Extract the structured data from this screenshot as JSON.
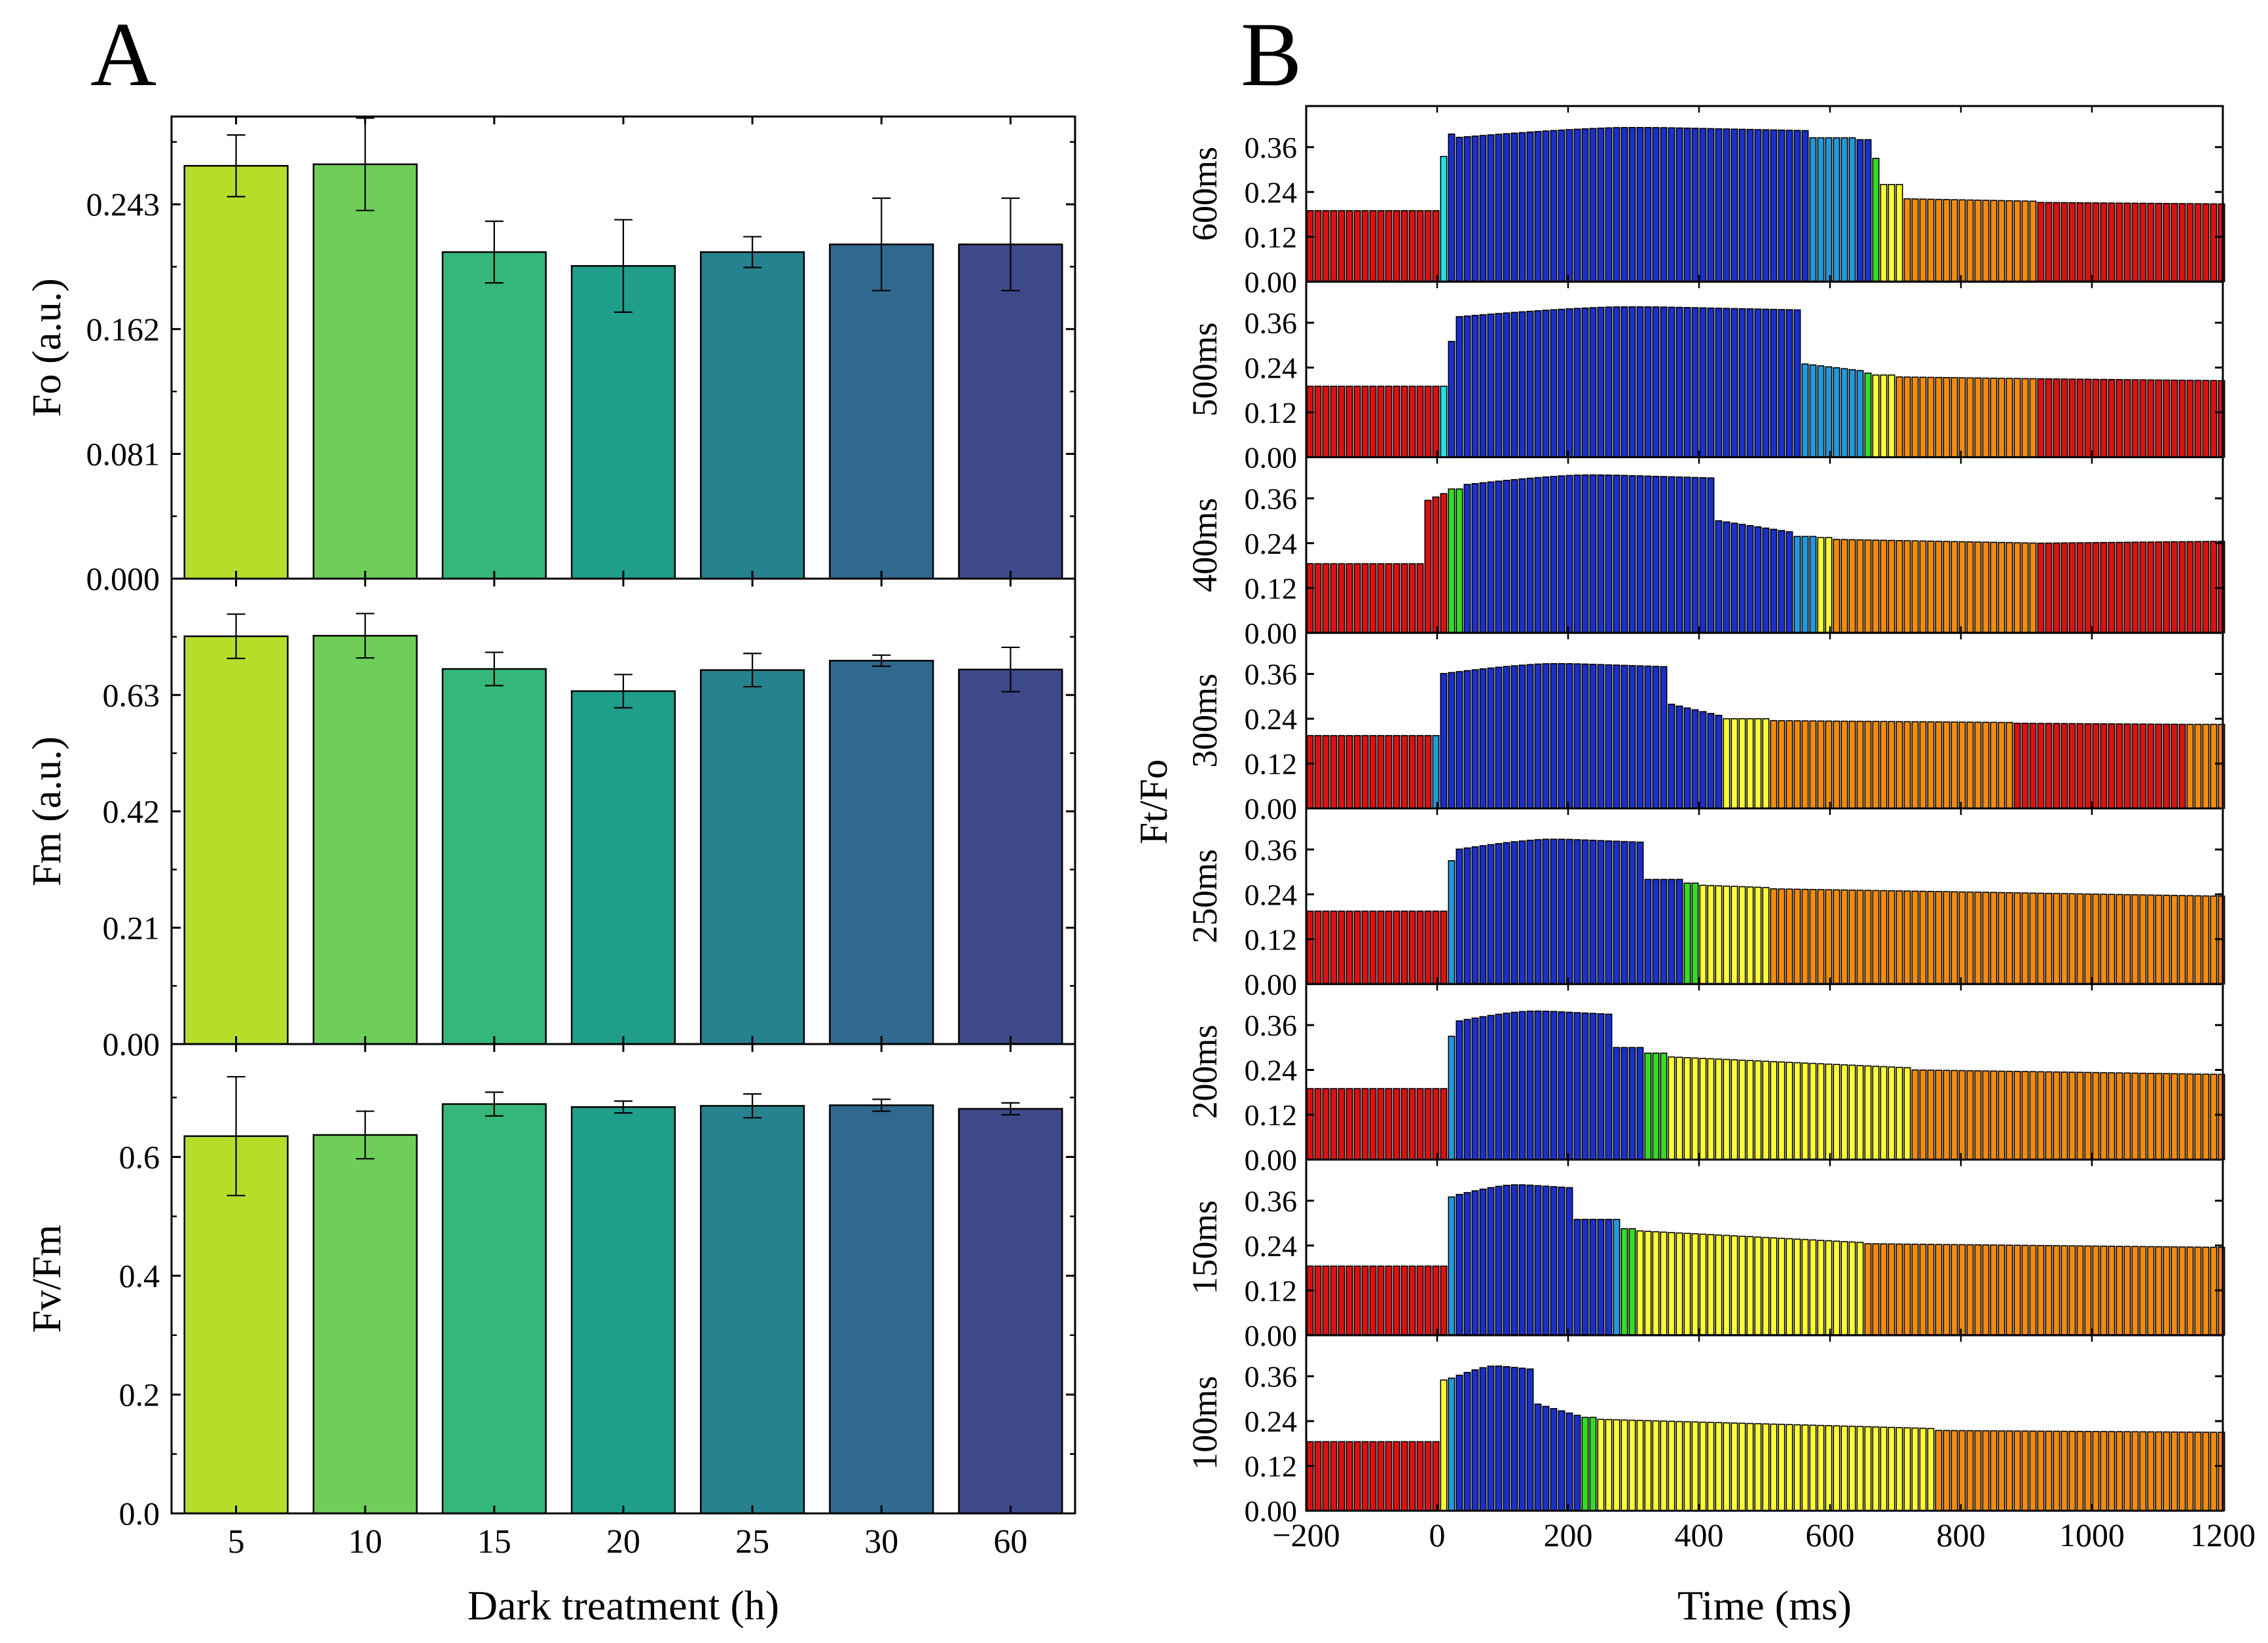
{
  "figure": {
    "panel_a_label": "A",
    "panel_b_label": "B"
  },
  "chart_data": [
    {
      "type": "bar",
      "panel": "A",
      "title": "",
      "xlabel": "Dark treatment (h)",
      "categories": [
        "5",
        "10",
        "15",
        "20",
        "25",
        "30",
        "60"
      ],
      "colors": [
        "#b5de2b",
        "#6ece58",
        "#35b779",
        "#1f9e89",
        "#26828e",
        "#31688e",
        "#3e4989"
      ],
      "subplots": [
        {
          "ylabel": "Fo (a.u.)",
          "ylim": [
            0,
            0.3
          ],
          "yticks": [
            "0.000",
            "0.081",
            "0.162",
            "0.243"
          ],
          "ytick_values": [
            0,
            0.081,
            0.162,
            0.243
          ],
          "values": [
            0.268,
            0.269,
            0.212,
            0.203,
            0.212,
            0.217,
            0.217
          ],
          "errors": [
            0.02,
            0.03,
            0.02,
            0.03,
            0.01,
            0.03,
            0.03
          ]
        },
        {
          "ylabel": "Fm (a.u.)",
          "ylim": [
            0,
            0.84
          ],
          "yticks": [
            "0.00",
            "0.21",
            "0.42",
            "0.63"
          ],
          "ytick_values": [
            0,
            0.21,
            0.42,
            0.63
          ],
          "values": [
            0.736,
            0.737,
            0.677,
            0.637,
            0.675,
            0.692,
            0.676
          ],
          "errors": [
            0.04,
            0.04,
            0.03,
            0.03,
            0.03,
            0.01,
            0.04
          ]
        },
        {
          "ylabel": "Fv/Fm",
          "ylim": [
            0,
            0.79
          ],
          "yticks": [
            "0.0",
            "0.2",
            "0.4",
            "0.6"
          ],
          "ytick_values": [
            0,
            0.2,
            0.4,
            0.6
          ],
          "values": [
            0.635,
            0.637,
            0.689,
            0.684,
            0.686,
            0.687,
            0.681
          ],
          "errors": [
            0.1,
            0.04,
            0.02,
            0.01,
            0.02,
            0.01,
            0.01
          ]
        }
      ]
    },
    {
      "type": "bar",
      "panel": "B",
      "title": "",
      "xlabel": "Time (ms)",
      "ylabel": "Ft/Fo",
      "xlim": [
        -200,
        1200
      ],
      "xticks": [
        "−200",
        "0",
        "200",
        "400",
        "600",
        "800",
        "1000",
        "1200"
      ],
      "xtick_values": [
        -200,
        0,
        200,
        400,
        600,
        800,
        1000,
        1200
      ],
      "ylim": [
        0,
        0.47
      ],
      "yticks": [
        "0.00",
        "0.12",
        "0.24",
        "0.36"
      ],
      "ytick_values": [
        0,
        0.12,
        0.24,
        0.36
      ],
      "bar_step_ms": 12,
      "palette": {
        "red": "#dd1111",
        "orange": "#f58a0b",
        "yellow": "#ffff33",
        "green": "#33dd22",
        "cyan": "#19e6e6",
        "lightblue": "#2299dd",
        "blue": "#1a2fcc"
      },
      "series": [
        {
          "name": "600ms",
          "segments": [
            {
              "end": 0,
              "level": 0.19,
              "color": "red"
            },
            {
              "end": 15,
              "level": 0.335,
              "color": "cyan"
            },
            {
              "end": 25,
              "level": 0.395,
              "color": "blue"
            },
            {
              "end": 570,
              "level": 0.415,
              "color": "blue",
              "shape": "dome"
            },
            {
              "end": 640,
              "level": 0.385,
              "color": "lightblue"
            },
            {
              "end": 660,
              "level": 0.38,
              "color": "blue"
            },
            {
              "end": 675,
              "level": 0.33,
              "color": "green"
            },
            {
              "end": 710,
              "level": 0.26,
              "color": "yellow"
            },
            {
              "end": 920,
              "level": 0.222,
              "color": "orange",
              "end_level": 0.215
            },
            {
              "end": 1200,
              "level": 0.212,
              "color": "red",
              "end_level": 0.208
            }
          ]
        },
        {
          "name": "500ms",
          "segments": [
            {
              "end": 0,
              "level": 0.19,
              "color": "red"
            },
            {
              "end": 15,
              "level": 0.19,
              "color": "cyan"
            },
            {
              "end": 25,
              "level": 0.31,
              "color": "blue"
            },
            {
              "end": 560,
              "level": 0.405,
              "color": "blue",
              "shape": "dome"
            },
            {
              "end": 655,
              "level": 0.25,
              "color": "lightblue",
              "end_level": 0.23
            },
            {
              "end": 670,
              "level": 0.225,
              "color": "green"
            },
            {
              "end": 700,
              "level": 0.22,
              "color": "yellow"
            },
            {
              "end": 920,
              "level": 0.215,
              "color": "orange",
              "end_level": 0.21
            },
            {
              "end": 1200,
              "level": 0.21,
              "color": "red",
              "end_level": 0.205
            }
          ]
        },
        {
          "name": "400ms",
          "segments": [
            {
              "end": -20,
              "level": 0.185,
              "color": "red"
            },
            {
              "end": 20,
              "level": 0.35,
              "color": "red",
              "end_level": 0.38
            },
            {
              "end": 35,
              "level": 0.385,
              "color": "green"
            },
            {
              "end": 430,
              "level": 0.425,
              "color": "blue",
              "shape": "dome"
            },
            {
              "end": 540,
              "level": 0.3,
              "color": "blue",
              "end_level": 0.27
            },
            {
              "end": 575,
              "level": 0.258,
              "color": "lightblue"
            },
            {
              "end": 610,
              "level": 0.255,
              "color": "yellow"
            },
            {
              "end": 920,
              "level": 0.25,
              "color": "orange",
              "end_level": 0.24
            },
            {
              "end": 1200,
              "level": 0.24,
              "color": "red",
              "end_level": 0.245
            }
          ]
        },
        {
          "name": "300ms",
          "segments": [
            {
              "end": -10,
              "level": 0.195,
              "color": "red"
            },
            {
              "end": 5,
              "level": 0.195,
              "color": "lightblue"
            },
            {
              "end": 355,
              "level": 0.39,
              "color": "blue",
              "shape": "dome"
            },
            {
              "end": 440,
              "level": 0.28,
              "color": "blue",
              "end_level": 0.245
            },
            {
              "end": 510,
              "level": 0.24,
              "color": "yellow"
            },
            {
              "end": 880,
              "level": 0.235,
              "color": "orange",
              "end_level": 0.23
            },
            {
              "end": 1150,
              "level": 0.228,
              "color": "red",
              "end_level": 0.225
            },
            {
              "end": 1200,
              "level": 0.225,
              "color": "orange"
            }
          ]
        },
        {
          "name": "250ms",
          "segments": [
            {
              "end": 20,
              "level": 0.195,
              "color": "red"
            },
            {
              "end": 30,
              "level": 0.33,
              "color": "lightblue"
            },
            {
              "end": 320,
              "level": 0.39,
              "color": "blue",
              "shape": "dome"
            },
            {
              "end": 375,
              "level": 0.28,
              "color": "blue"
            },
            {
              "end": 395,
              "level": 0.27,
              "color": "green"
            },
            {
              "end": 505,
              "level": 0.265,
              "color": "yellow",
              "end_level": 0.258
            },
            {
              "end": 1200,
              "level": 0.255,
              "color": "orange",
              "end_level": 0.235
            }
          ]
        },
        {
          "name": "200ms",
          "segments": [
            {
              "end": 20,
              "level": 0.19,
              "color": "red"
            },
            {
              "end": 30,
              "level": 0.33,
              "color": "lightblue"
            },
            {
              "end": 265,
              "level": 0.4,
              "color": "blue",
              "shape": "dome"
            },
            {
              "end": 320,
              "level": 0.3,
              "color": "blue"
            },
            {
              "end": 355,
              "level": 0.285,
              "color": "green"
            },
            {
              "end": 730,
              "level": 0.275,
              "color": "yellow",
              "end_level": 0.245
            },
            {
              "end": 1200,
              "level": 0.24,
              "color": "orange",
              "end_level": 0.228
            }
          ]
        },
        {
          "name": "150ms",
          "segments": [
            {
              "end": 20,
              "level": 0.185,
              "color": "red"
            },
            {
              "end": 30,
              "level": 0.37,
              "color": "lightblue"
            },
            {
              "end": 210,
              "level": 0.405,
              "color": "blue",
              "shape": "dome"
            },
            {
              "end": 265,
              "level": 0.31,
              "color": "blue"
            },
            {
              "end": 275,
              "level": 0.31,
              "color": "lightblue"
            },
            {
              "end": 300,
              "level": 0.285,
              "color": "green"
            },
            {
              "end": 650,
              "level": 0.28,
              "color": "yellow",
              "end_level": 0.248
            },
            {
              "end": 1200,
              "level": 0.245,
              "color": "orange",
              "end_level": 0.235
            }
          ]
        },
        {
          "name": "100ms",
          "segments": [
            {
              "end": 10,
              "level": 0.185,
              "color": "red"
            },
            {
              "end": 20,
              "level": 0.35,
              "color": "yellow"
            },
            {
              "end": 30,
              "level": 0.355,
              "color": "lightblue"
            },
            {
              "end": 145,
              "level": 0.39,
              "color": "blue",
              "shape": "dome"
            },
            {
              "end": 215,
              "level": 0.29,
              "color": "blue",
              "end_level": 0.255
            },
            {
              "end": 245,
              "level": 0.25,
              "color": "green"
            },
            {
              "end": 760,
              "level": 0.245,
              "color": "yellow",
              "end_level": 0.22
            },
            {
              "end": 1200,
              "level": 0.215,
              "color": "orange",
              "end_level": 0.21
            }
          ]
        }
      ]
    }
  ]
}
